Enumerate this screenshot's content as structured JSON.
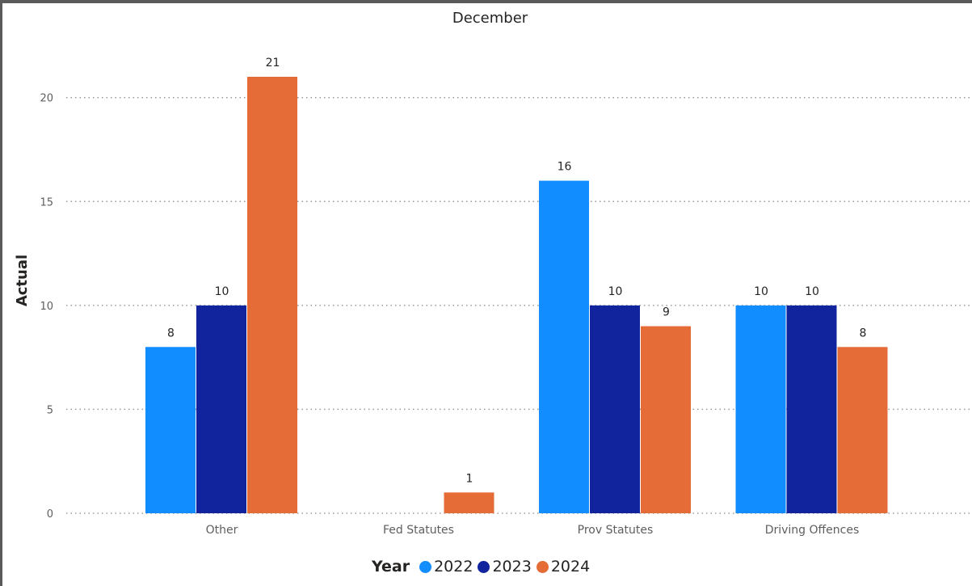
{
  "chart_data": {
    "type": "bar",
    "title": "December",
    "xlabel": "",
    "ylabel": "Actual",
    "ylim": [
      0,
      22
    ],
    "yticks": [
      0,
      5,
      10,
      15,
      20
    ],
    "grid": "horizontal-dotted",
    "legend_position": "bottom",
    "legend_title": "Year",
    "categories": [
      "Other",
      "Fed Statutes",
      "Prov Statutes",
      "Driving Offences"
    ],
    "series": [
      {
        "name": "2022",
        "color": "#118dff",
        "values": [
          8,
          null,
          16,
          10
        ]
      },
      {
        "name": "2023",
        "color": "#12239e",
        "values": [
          10,
          null,
          10,
          10
        ]
      },
      {
        "name": "2024",
        "color": "#e66c37",
        "values": [
          21,
          1,
          9,
          8
        ]
      }
    ]
  }
}
